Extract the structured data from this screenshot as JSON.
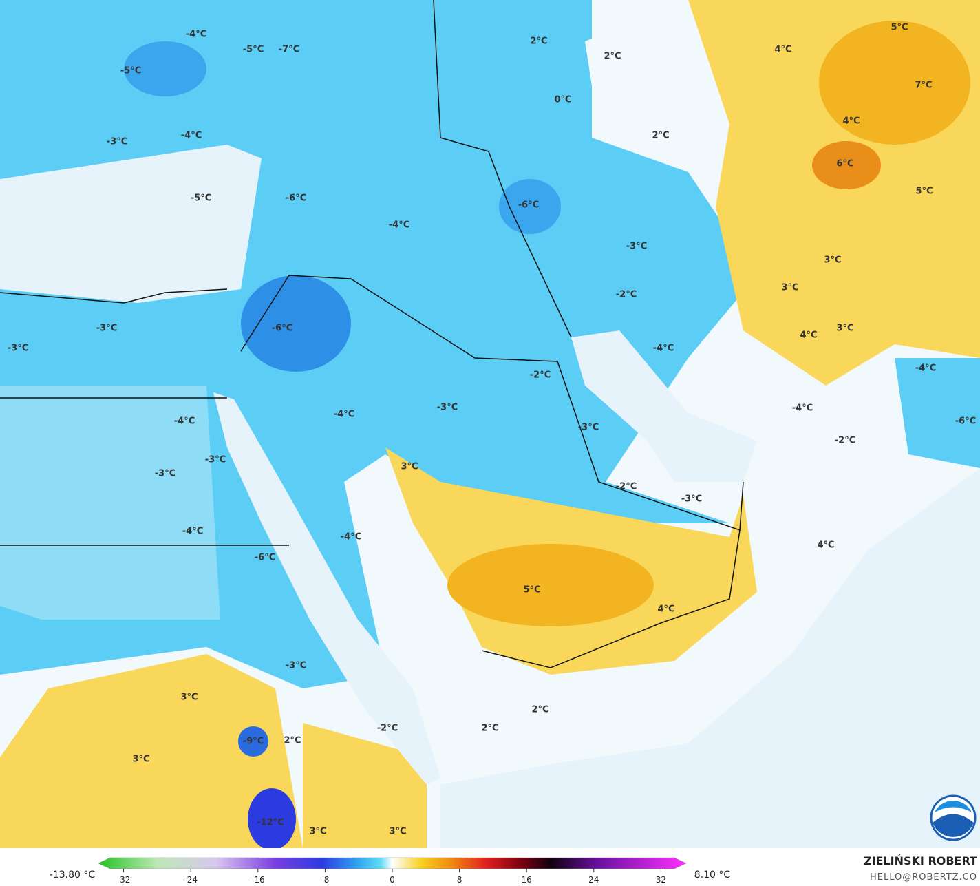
{
  "map_labels": [
    "-4°C",
    "-5°C",
    "-7°C",
    "-5°C",
    "-4°C",
    "-3°C",
    "-5°C",
    "-6°C",
    "-4°C",
    "2°C",
    "2°C",
    "0°C",
    "2°C",
    "4°C",
    "5°C",
    "7°C",
    "4°C",
    "6°C",
    "5°C",
    "-6°C",
    "-3°C",
    "3°C",
    "3°C",
    "-2°C",
    "-3°C",
    "-6°C",
    "-3°C",
    "4°C",
    "3°C",
    "-4°C",
    "-4°C",
    "-2°C",
    "-3°C",
    "-4°C",
    "-4°C",
    "-3°C",
    "-4°C",
    "-6°C",
    "-2°C",
    "3°C",
    "-3°C",
    "-3°C",
    "-2°C",
    "-3°C",
    "-4°C",
    "-4°C",
    "-6°C",
    "4°C",
    "5°C",
    "4°C",
    "-3°C",
    "3°C",
    "2°C",
    "-2°C",
    "2°C",
    "-9°C",
    "2°C",
    "3°C",
    "-12°C",
    "3°C",
    "3°C"
  ],
  "colorbar": {
    "min_label": "-13.80 °C",
    "max_label": "8.10 °C",
    "lim": [
      -35,
      35
    ],
    "ticks": [
      -32,
      -24,
      -16,
      -8,
      0,
      8,
      16,
      24,
      32
    ]
  },
  "credit": {
    "author": "ZIELIŃSKI ROBERT",
    "email": "HELLO@ROBERTZ.CO"
  }
}
